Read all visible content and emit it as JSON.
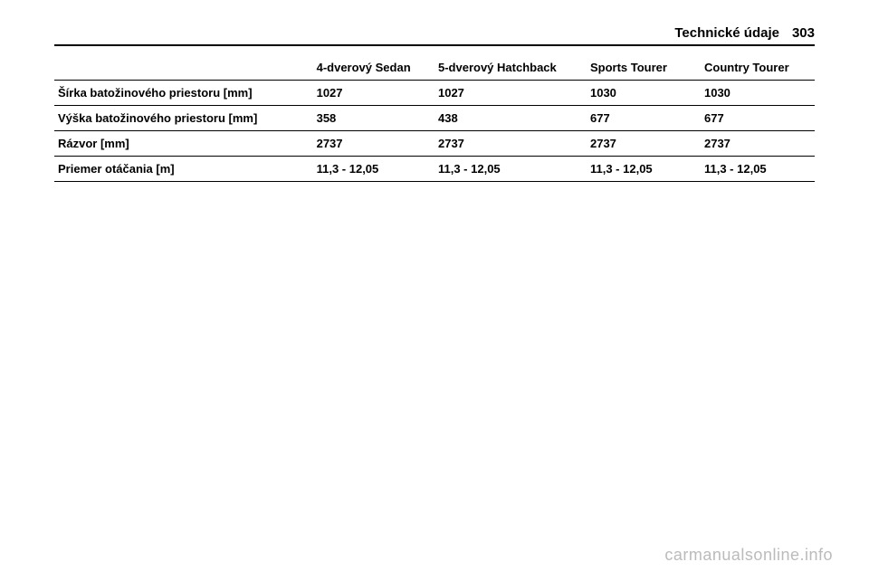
{
  "header": {
    "title": "Technické údaje",
    "page": "303"
  },
  "table": {
    "columns": [
      "",
      "4-dverový Sedan",
      "5-dverový Hatchback",
      "Sports Tourer",
      "Country Tourer"
    ],
    "rows": [
      [
        "Šírka batožinového priestoru [mm]",
        "1027",
        "1027",
        "1030",
        "1030"
      ],
      [
        "Výška batožinového priestoru [mm]",
        "358",
        "438",
        "677",
        "677"
      ],
      [
        "Rázvor [mm]",
        "2737",
        "2737",
        "2737",
        "2737"
      ],
      [
        "Priemer otáčania [m]",
        "11,3 - 12,05",
        "11,3 - 12,05",
        "11,3 - 12,05",
        "11,3 - 12,05"
      ]
    ]
  },
  "watermark": "carmanualsonline.info"
}
